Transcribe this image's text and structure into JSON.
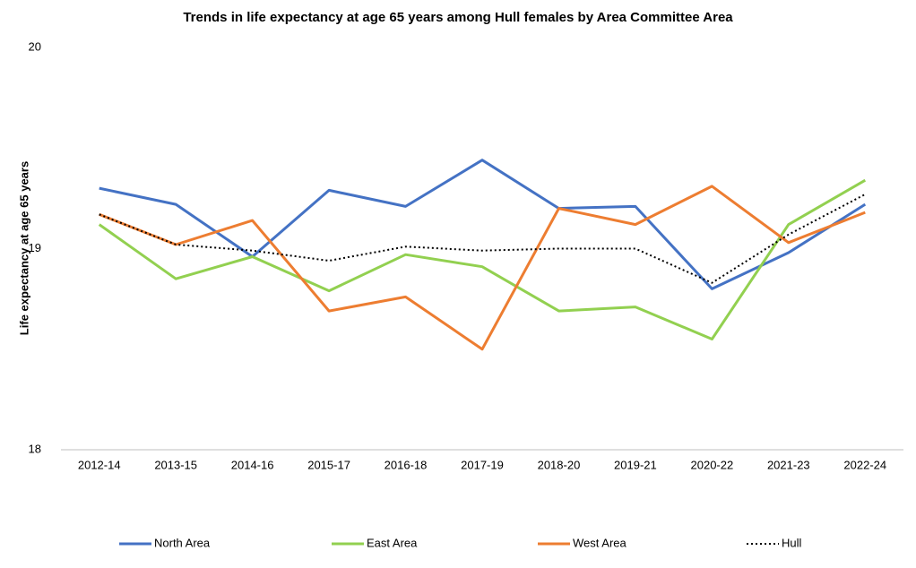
{
  "chart_data": {
    "type": "line",
    "title": "Trends in life expectancy at  age 65 years among Hull females by Area Committee Area",
    "y_label": "Life expectancy at  age 65 years",
    "categories": [
      "2012-14",
      "2013-15",
      "2014-16",
      "2015-17",
      "2016-18",
      "2017-19",
      "2018-20",
      "2019-21",
      "2020-22",
      "2021-23",
      "2022-24"
    ],
    "series": [
      {
        "name": "North Area",
        "color": "#4472c4",
        "line_style": "solid",
        "values": [
          19.3,
          19.22,
          18.96,
          19.29,
          19.21,
          19.44,
          19.2,
          19.21,
          18.8,
          18.98,
          19.22
        ]
      },
      {
        "name": "East Area",
        "color": "#92d050",
        "line_style": "solid",
        "values": [
          19.12,
          18.85,
          18.96,
          18.79,
          18.97,
          18.91,
          18.69,
          18.71,
          18.55,
          19.12,
          19.34
        ]
      },
      {
        "name": "West Area",
        "color": "#ed7d31",
        "line_style": "solid",
        "values": [
          19.17,
          19.02,
          19.14,
          18.69,
          18.76,
          18.5,
          19.2,
          19.12,
          19.31,
          19.03,
          19.18
        ]
      },
      {
        "name": "Hull",
        "color": "#000000",
        "line_style": "dotted",
        "values": [
          19.17,
          19.02,
          18.99,
          18.94,
          19.01,
          18.99,
          19.0,
          19.0,
          18.83,
          19.07,
          19.27
        ]
      }
    ],
    "ylim": [
      18,
      20
    ],
    "yticks": [
      18,
      19,
      20
    ],
    "grid": false,
    "legend": "bottom"
  }
}
